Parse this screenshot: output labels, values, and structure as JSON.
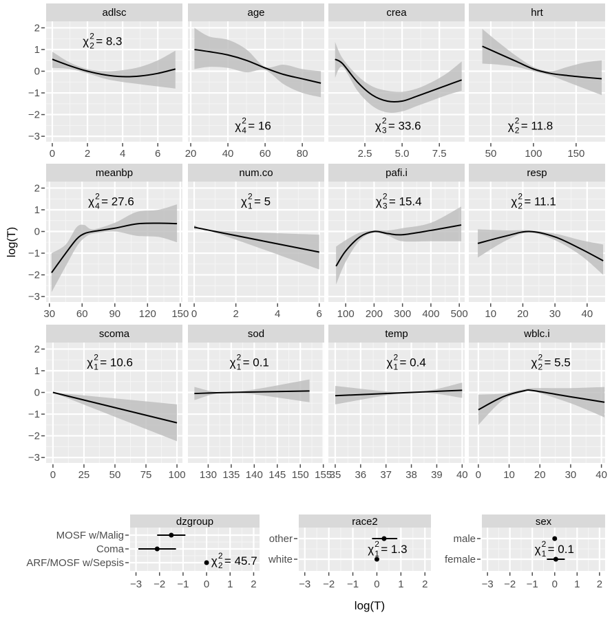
{
  "chart_data": {
    "type": "line",
    "xlabel": "log(T)",
    "ylabel": "log(T)",
    "ylim": [
      -3.25,
      2.3
    ],
    "yticks": [
      "2",
      "1",
      "0",
      "−1",
      "−2",
      "−3"
    ],
    "grid": true,
    "colors": {
      "panel_bg": "#ebebeb",
      "grid": "#ffffff",
      "strip_bg": "#d9d9d9",
      "band": "#bdbdbd",
      "line": "#000000"
    },
    "panels": [
      {
        "name": "adlsc",
        "xlim": [
          -0.35,
          7.4
        ],
        "xticks": [
          "0",
          "2",
          "4",
          "6"
        ],
        "x": [
          0,
          1,
          2,
          3,
          4,
          5,
          6,
          7
        ],
        "y": [
          0.55,
          0.25,
          0.0,
          -0.17,
          -0.25,
          -0.22,
          -0.1,
          0.1
        ],
        "lower": [
          0.15,
          0.1,
          -0.1,
          -0.35,
          -0.5,
          -0.6,
          -0.7,
          -0.8
        ],
        "upper": [
          0.9,
          0.4,
          0.1,
          0.0,
          0.05,
          0.2,
          0.5,
          0.95
        ],
        "chi2": {
          "df": "2",
          "value": "8.3",
          "at": [
            3,
            1.4
          ]
        }
      },
      {
        "name": "age",
        "xlim": [
          18.5,
          91.8
        ],
        "xticks": [
          "20",
          "40",
          "60",
          "80"
        ],
        "x": [
          22,
          30,
          40,
          50,
          60,
          70,
          80,
          90
        ],
        "y": [
          1.0,
          0.9,
          0.75,
          0.5,
          0.15,
          -0.15,
          -0.35,
          -0.55
        ],
        "lower": [
          0.1,
          0.2,
          0.15,
          -0.05,
          0.05,
          -0.6,
          -1.0,
          -1.2
        ],
        "upper": [
          2.0,
          1.6,
          1.45,
          1.0,
          0.2,
          0.3,
          0.1,
          0.0
        ],
        "chi2": {
          "df": "4",
          "value": "16",
          "at": [
            54,
            -2.5
          ]
        }
      },
      {
        "name": "crea",
        "xlim": [
          0.05,
          9.2
        ],
        "xticks": [
          "2.5",
          "5.0",
          "7.5"
        ],
        "x": [
          0.5,
          1,
          2,
          3,
          4,
          5,
          6,
          7,
          8,
          9
        ],
        "y": [
          0.55,
          0.35,
          -0.5,
          -1.1,
          -1.38,
          -1.38,
          -1.15,
          -0.9,
          -0.65,
          -0.4
        ],
        "lower": [
          -0.3,
          0.2,
          -0.9,
          -1.6,
          -1.9,
          -1.85,
          -1.6,
          -1.35,
          -1.1,
          -0.9
        ],
        "upper": [
          1.35,
          0.6,
          -0.2,
          -0.7,
          -0.9,
          -0.95,
          -0.8,
          -0.5,
          -0.1,
          0.45
        ],
        "chi2": {
          "df": "3",
          "value": "33.6",
          "at": [
            4.9,
            -2.5
          ]
        }
      },
      {
        "name": "hrt",
        "xlim": [
          24.2,
          184
        ],
        "xticks": [
          "50",
          "100",
          "150"
        ],
        "x": [
          40,
          60,
          80,
          100,
          120,
          140,
          160,
          180
        ],
        "y": [
          1.15,
          0.8,
          0.45,
          0.1,
          -0.1,
          -0.2,
          -0.28,
          -0.35
        ],
        "lower": [
          0.35,
          0.3,
          0.2,
          0.0,
          -0.2,
          -0.5,
          -0.8,
          -1.1
        ],
        "upper": [
          1.95,
          1.3,
          0.7,
          0.2,
          0.0,
          0.2,
          0.4,
          0.5
        ],
        "chi2": {
          "df": "2",
          "value": "11.8",
          "at": [
            100,
            -2.5
          ]
        }
      },
      {
        "name": "meanbp",
        "xlim": [
          27,
          152
        ],
        "xticks": [
          "30",
          "60",
          "90",
          "120",
          "150"
        ],
        "x": [
          32,
          45,
          55,
          62,
          70,
          90,
          110,
          130,
          147
        ],
        "y": [
          -1.9,
          -1.0,
          -0.35,
          -0.1,
          0,
          0.15,
          0.35,
          0.38,
          0.36
        ],
        "lower": [
          -2.8,
          -1.6,
          -0.7,
          -0.3,
          -0.1,
          0,
          -0.2,
          -0.25,
          -0.5
        ],
        "upper": [
          -1.0,
          -0.6,
          0.2,
          0.3,
          0.1,
          0.4,
          0.9,
          1.0,
          1.25
        ],
        "chi2": {
          "df": "4",
          "value": "27.6",
          "at": [
            89,
            1.4
          ]
        }
      },
      {
        "name": "num.co",
        "xlim": [
          -0.3,
          6.24
        ],
        "xticks": [
          "0",
          "2",
          "4",
          "6"
        ],
        "x": [
          0,
          1,
          6
        ],
        "y": [
          0.2,
          0.0,
          -0.95
        ],
        "lower": [
          0.1,
          -0.05,
          -1.75
        ],
        "upper": [
          0.3,
          0.05,
          -0.15
        ],
        "chi2": {
          "df": "1",
          "value": "5",
          "at": [
            3.0,
            1.4
          ]
        }
      },
      {
        "name": "pafi.i",
        "xlim": [
          39,
          519
        ],
        "xticks": [
          "100",
          "200",
          "300",
          "400",
          "500"
        ],
        "x": [
          66,
          100,
          150,
          200,
          250,
          300,
          400,
          507
        ],
        "y": [
          -1.6,
          -0.9,
          -0.25,
          0,
          -0.1,
          -0.15,
          0.05,
          0.3
        ],
        "lower": [
          -2.45,
          -1.4,
          -0.4,
          -0.05,
          -0.2,
          -0.45,
          -0.45,
          -0.45
        ],
        "upper": [
          -0.7,
          -0.4,
          -0.05,
          0.05,
          0.05,
          0.15,
          0.4,
          1.15
        ],
        "chi2": {
          "df": "3",
          "value": "15.4",
          "at": [
            296,
            1.4
          ]
        }
      },
      {
        "name": "resp",
        "xlim": [
          3.2,
          45.6
        ],
        "xticks": [
          "10",
          "20",
          "30",
          "40"
        ],
        "x": [
          6,
          15,
          22,
          30,
          38,
          45
        ],
        "y": [
          -0.55,
          -0.2,
          0,
          -0.25,
          -0.8,
          -1.35
        ],
        "lower": [
          -1.2,
          -0.4,
          -0.05,
          -0.4,
          -1.1,
          -2.0
        ],
        "upper": [
          0.1,
          0.05,
          0.05,
          -0.1,
          -0.4,
          -0.6
        ],
        "chi2": {
          "df": "2",
          "value": "11.1",
          "at": [
            24.3,
            1.4
          ]
        }
      },
      {
        "name": "scoma",
        "xlim": [
          -5.5,
          104.4
        ],
        "xticks": [
          "0",
          "25",
          "50",
          "75",
          "100"
        ],
        "x": [
          0,
          100
        ],
        "y": [
          0,
          -1.4
        ],
        "lower": [
          0,
          -2.25
        ],
        "upper": [
          0,
          -0.55
        ],
        "chi2": {
          "df": "1",
          "value": "10.6",
          "at": [
            48,
            1.4
          ]
        }
      },
      {
        "name": "sod",
        "xlim": [
          125.6,
          155.2
        ],
        "xticks": [
          "130",
          "135",
          "140",
          "145",
          "150",
          "155"
        ],
        "x": [
          127,
          135,
          152
        ],
        "y": [
          -0.05,
          0,
          0.07
        ],
        "lower": [
          -0.35,
          0,
          -0.45
        ],
        "upper": [
          0.25,
          0,
          0.6
        ],
        "chi2": {
          "df": "1",
          "value": "0.1",
          "at": [
            139.5,
            1.4
          ]
        }
      },
      {
        "name": "temp",
        "xlim": [
          34.73,
          40.1
        ],
        "xticks": [
          "35",
          "36",
          "37",
          "38",
          "39",
          "40"
        ],
        "x": [
          35,
          38,
          40
        ],
        "y": [
          -0.15,
          0,
          0.1
        ],
        "lower": [
          -0.55,
          0,
          -0.25
        ],
        "upper": [
          0.3,
          0,
          0.45
        ],
        "chi2": {
          "df": "1",
          "value": "0.4",
          "at": [
            37.9,
            1.4
          ]
        }
      },
      {
        "name": "wblc.i",
        "xlim": [
          -3.1,
          41.2
        ],
        "xticks": [
          "0",
          "10",
          "20",
          "30",
          "40"
        ],
        "x": [
          0,
          8,
          15,
          18,
          30,
          41
        ],
        "y": [
          -0.8,
          -0.2,
          0.08,
          0.08,
          -0.2,
          -0.45
        ],
        "lower": [
          -1.5,
          -0.35,
          0.03,
          0.05,
          -0.5,
          -1.15
        ],
        "upper": [
          -0.1,
          -0.05,
          0.15,
          0.2,
          0.2,
          0.25
        ],
        "chi2": {
          "df": "2",
          "value": "5.5",
          "at": [
            24.4,
            1.4
          ]
        }
      }
    ],
    "categorical_panels": [
      {
        "name": "dzgroup",
        "xlim": [
          -3.25,
          2.25
        ],
        "xticks": [
          "−3",
          "−2",
          "−1",
          "0",
          "1",
          "2"
        ],
        "levels": [
          "MOSF w/Malig",
          "Coma",
          "ARF/MOSF w/Sepsis"
        ],
        "estimate": [
          -1.5,
          -2.1,
          0
        ],
        "lower": [
          -2.1,
          -2.9,
          null
        ],
        "upper": [
          -0.9,
          -1.3,
          null
        ],
        "chi2": {
          "df": "2",
          "value": "45.7"
        }
      },
      {
        "name": "race2",
        "xlim": [
          -3.25,
          2.25
        ],
        "xticks": [
          "−3",
          "−2",
          "−1",
          "0",
          "1",
          "2"
        ],
        "levels": [
          "other",
          "white"
        ],
        "estimate": [
          0.3,
          0
        ],
        "lower": [
          -0.2,
          null
        ],
        "upper": [
          0.85,
          null
        ],
        "chi2": {
          "df": "1",
          "value": "1.3"
        }
      },
      {
        "name": "sex",
        "xlim": [
          -3.25,
          2.25
        ],
        "xticks": [
          "−3",
          "−2",
          "−1",
          "0",
          "1",
          "2"
        ],
        "levels": [
          "male",
          "female"
        ],
        "estimate": [
          0,
          0.05
        ],
        "lower": [
          null,
          -0.35
        ],
        "upper": [
          null,
          0.45
        ],
        "chi2": {
          "df": "1",
          "value": "0.1"
        }
      }
    ]
  }
}
